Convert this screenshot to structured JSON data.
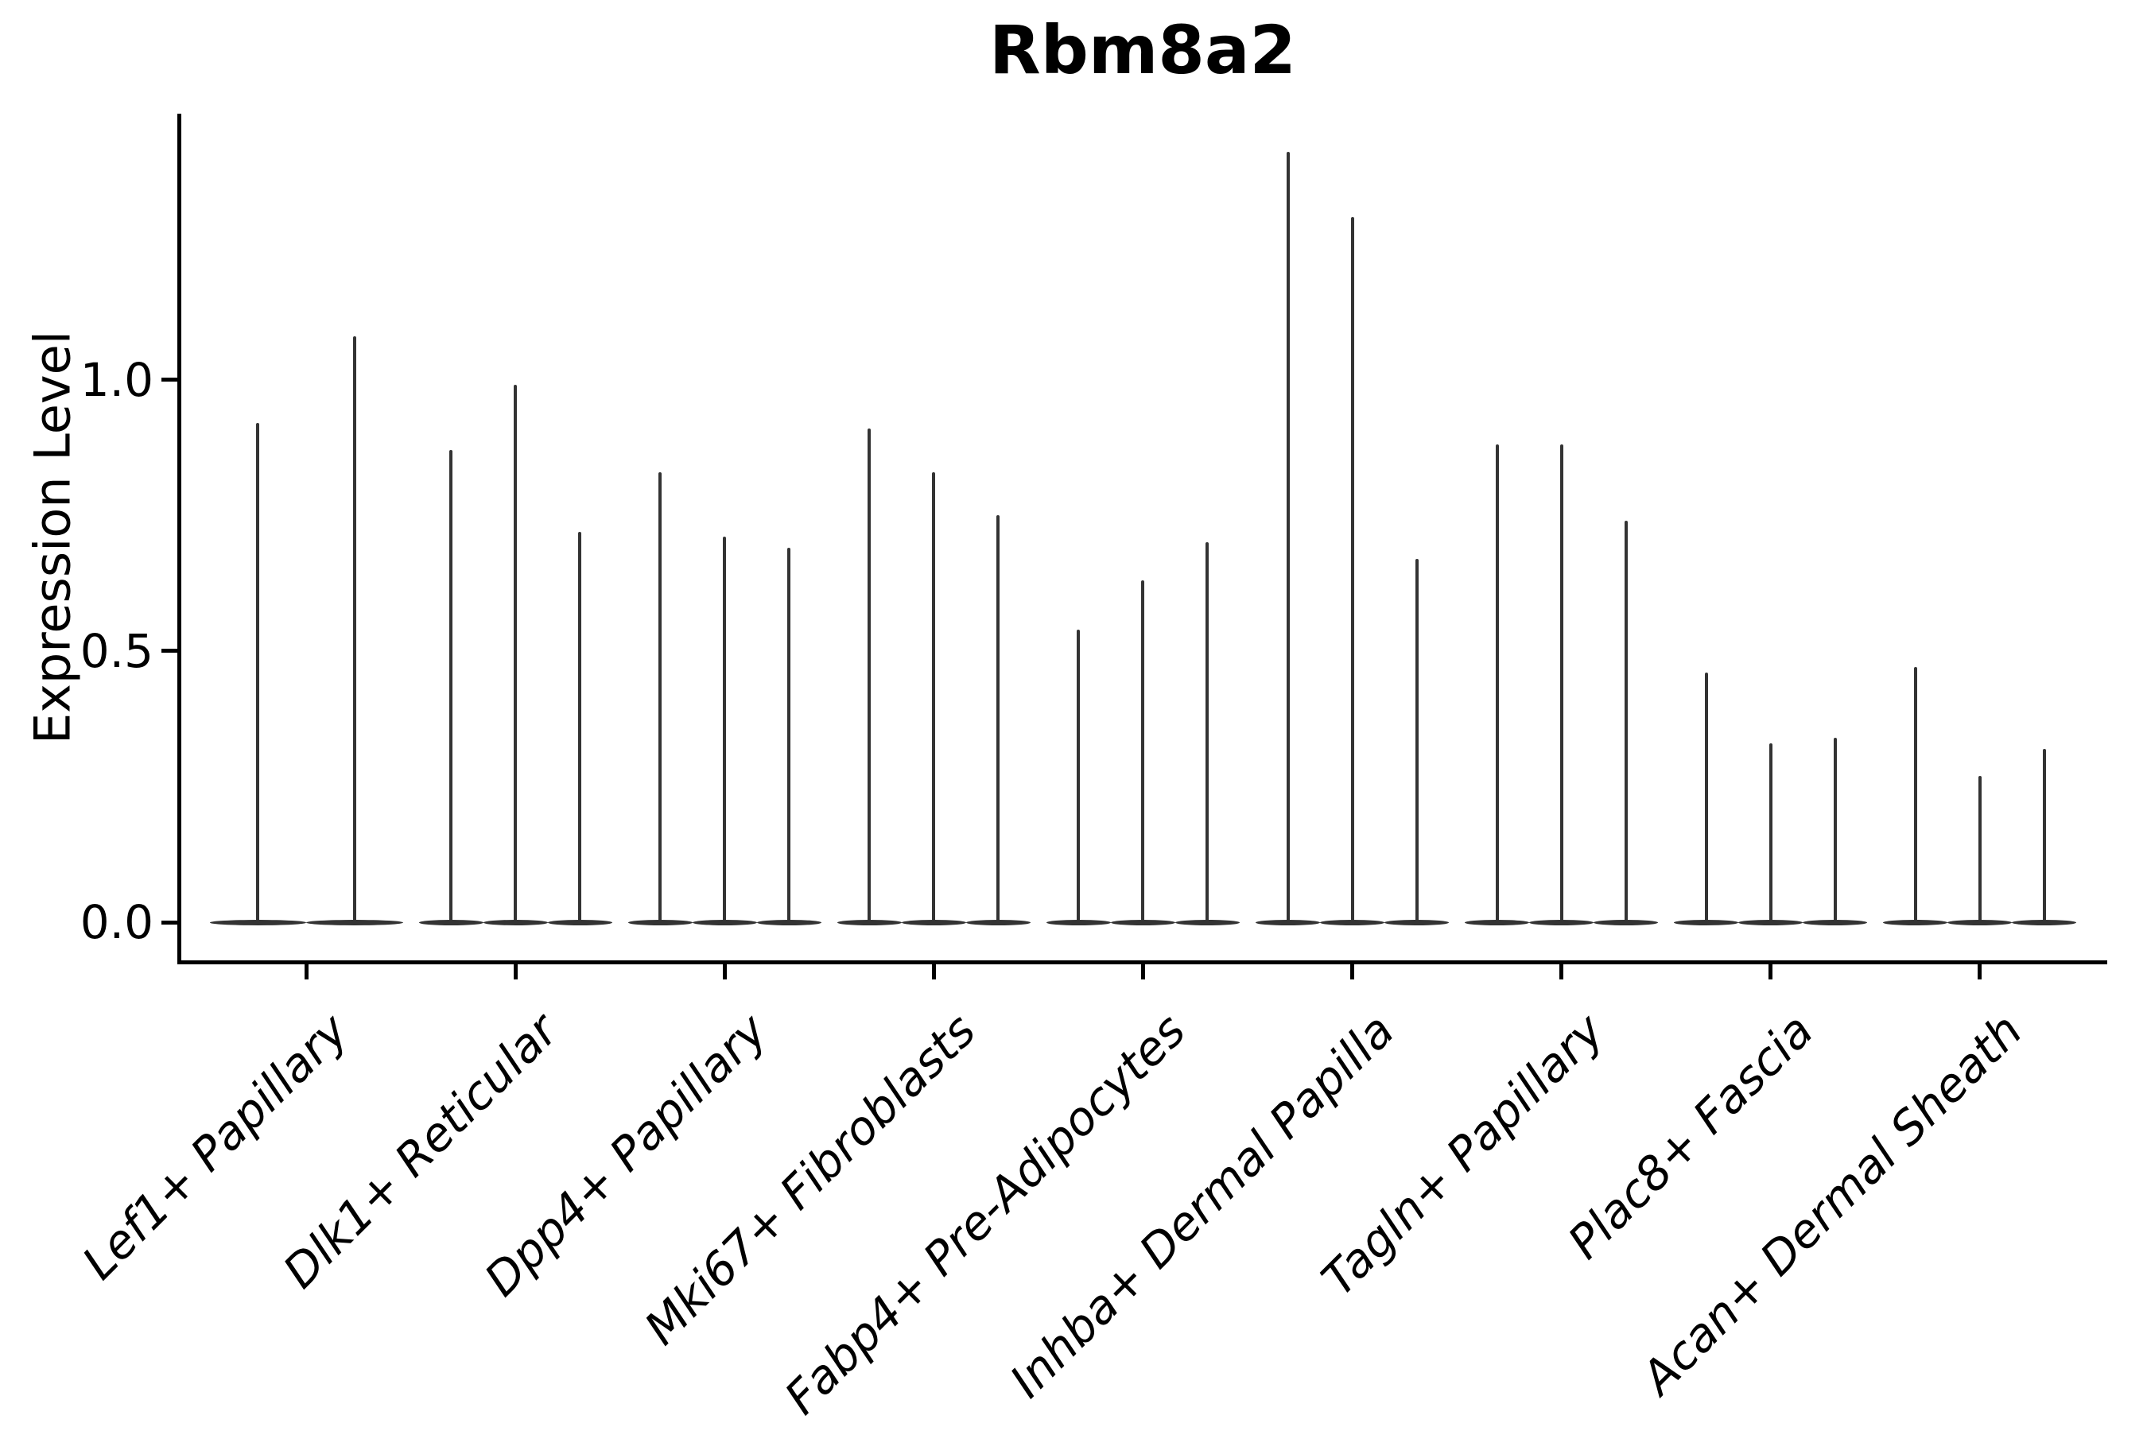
{
  "figure": {
    "title": "Rbm8a2",
    "y_axis": {
      "label": "Expression Level",
      "tick_labels": [
        "0.0",
        "0.5",
        "1.0"
      ]
    }
  },
  "colors": {
    "background": "#ffffff",
    "violin": "#333333",
    "axis": "#000000",
    "text": "#000000"
  },
  "chart_data": {
    "type": "violin",
    "title": "Rbm8a2",
    "xlabel": "",
    "ylabel": "Expression Level",
    "ylim": [
      -0.073,
      1.49
    ],
    "yticks": [
      0.0,
      0.5,
      1.0
    ],
    "ytick_labels": [
      "0.0",
      "0.5",
      "1.0"
    ],
    "grid": false,
    "legend": null,
    "x_label_rotation_deg": 45,
    "x_label_style": "italic",
    "categories": [
      "Lef1+ Papillary",
      "Dlk1+ Reticular",
      "Dpp4+ Papillary",
      "Mki67+ Fibroblasts",
      "Fabp4+ Pre-Adipocytes",
      "Inhba+ Dermal Papilla",
      "Tagln+ Papillary",
      "Plac8+ Fascia",
      "Acan+ Dermal Sheath"
    ],
    "series": [
      {
        "category": "Lef1+ Papillary",
        "violin_peaks": [
          0.92,
          1.08
        ]
      },
      {
        "category": "Dlk1+ Reticular",
        "violin_peaks": [
          0.87,
          0.99,
          0.72
        ]
      },
      {
        "category": "Dpp4+ Papillary",
        "violin_peaks": [
          0.83,
          0.71,
          0.69
        ]
      },
      {
        "category": "Mki67+ Fibroblasts",
        "violin_peaks": [
          0.91,
          0.83,
          0.75
        ]
      },
      {
        "category": "Fabp4+ Pre-Adipocytes",
        "violin_peaks": [
          0.54,
          0.63,
          0.7
        ]
      },
      {
        "category": "Inhba+ Dermal Papilla",
        "violin_peaks": [
          1.42,
          1.3,
          0.67
        ]
      },
      {
        "category": "Tagln+ Papillary",
        "violin_peaks": [
          0.88,
          0.88,
          0.74
        ]
      },
      {
        "category": "Plac8+ Fascia",
        "violin_peaks": [
          0.46,
          0.33,
          0.34
        ]
      },
      {
        "category": "Acan+ Dermal Sheath",
        "violin_peaks": [
          0.47,
          0.27,
          0.32
        ]
      }
    ]
  }
}
